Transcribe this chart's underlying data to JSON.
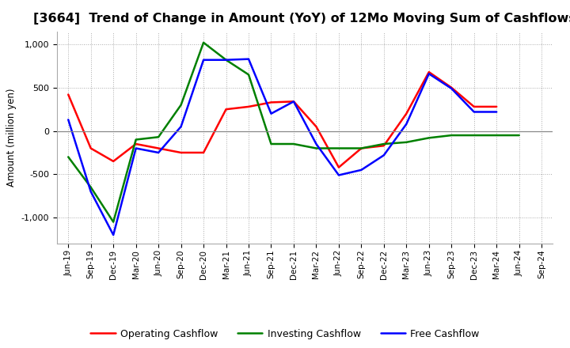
{
  "title": "[3664]  Trend of Change in Amount (YoY) of 12Mo Moving Sum of Cashflows",
  "ylabel": "Amount (million yen)",
  "x_labels": [
    "Jun-19",
    "Sep-19",
    "Dec-19",
    "Mar-20",
    "Jun-20",
    "Sep-20",
    "Dec-20",
    "Mar-21",
    "Jun-21",
    "Sep-21",
    "Dec-21",
    "Mar-22",
    "Jun-22",
    "Sep-22",
    "Dec-22",
    "Mar-23",
    "Jun-23",
    "Sep-23",
    "Dec-23",
    "Mar-24",
    "Jun-24",
    "Sep-24"
  ],
  "operating": [
    420,
    -200,
    -350,
    -150,
    -200,
    -250,
    -250,
    250,
    280,
    330,
    340,
    50,
    -420,
    -200,
    -170,
    200,
    680,
    500,
    280,
    280,
    null,
    null
  ],
  "investing": [
    -300,
    -650,
    -1050,
    -100,
    -70,
    300,
    1020,
    820,
    650,
    -150,
    -150,
    -200,
    -200,
    -200,
    -150,
    -130,
    -80,
    -50,
    -50,
    -50,
    -50,
    null
  ],
  "free": [
    130,
    -700,
    -1200,
    -200,
    -250,
    50,
    820,
    820,
    830,
    200,
    340,
    -150,
    -510,
    -450,
    -280,
    80,
    660,
    490,
    220,
    220,
    null,
    null
  ],
  "ylim": [
    -1300,
    1150
  ],
  "yticks": [
    -1000,
    -500,
    0,
    500,
    1000
  ],
  "operating_color": "#ff0000",
  "investing_color": "#008000",
  "free_color": "#0000ff",
  "background_color": "#ffffff",
  "grid_color": "#aaaaaa",
  "zero_line_color": "#888888",
  "title_fontsize": 11.5,
  "legend_labels": [
    "Operating Cashflow",
    "Investing Cashflow",
    "Free Cashflow"
  ]
}
